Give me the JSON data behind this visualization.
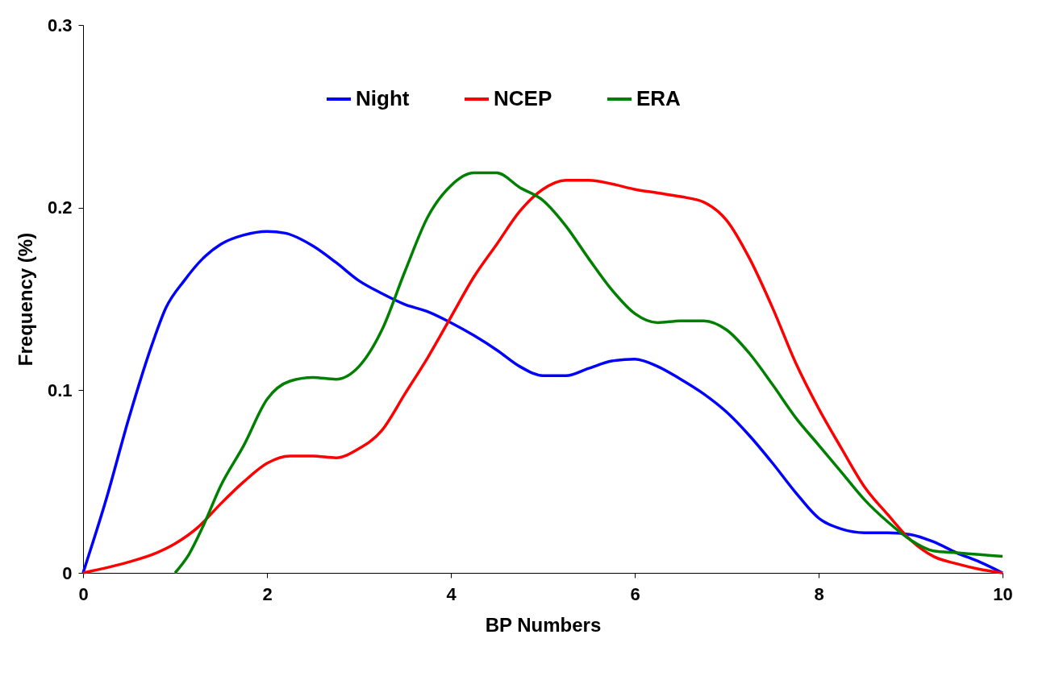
{
  "chart_data": {
    "type": "line",
    "xlabel": "BP Numbers",
    "ylabel": "Frequency (%)",
    "xlim": [
      0,
      10
    ],
    "xticks": [
      0,
      2,
      4,
      6,
      8,
      10
    ],
    "ylim": [
      0,
      0.3
    ],
    "yticks": [
      0,
      0.1,
      0.2,
      0.3
    ],
    "grid": false,
    "legend": "top",
    "marker": "none",
    "line_style": "solid",
    "series": [
      {
        "name": "Night",
        "color": "#0000ff",
        "x": [
          0,
          0.25,
          0.5,
          0.75,
          0.9,
          1.1,
          1.3,
          1.5,
          1.75,
          2,
          2.2,
          2.5,
          2.75,
          3,
          3.25,
          3.5,
          3.75,
          4,
          4.25,
          4.5,
          4.75,
          5,
          5.25,
          5.5,
          5.75,
          6,
          6.25,
          6.5,
          6.75,
          7,
          7.25,
          7.5,
          7.75,
          8,
          8.25,
          8.5,
          8.75,
          9,
          9.25,
          9.5,
          9.75,
          10
        ],
        "values": [
          0,
          0.04,
          0.085,
          0.125,
          0.145,
          0.16,
          0.172,
          0.18,
          0.185,
          0.187,
          0.186,
          0.179,
          0.17,
          0.16,
          0.153,
          0.147,
          0.143,
          0.137,
          0.13,
          0.122,
          0.113,
          0.108,
          0.108,
          0.112,
          0.116,
          0.117,
          0.113,
          0.106,
          0.098,
          0.088,
          0.075,
          0.06,
          0.044,
          0.03,
          0.024,
          0.022,
          0.022,
          0.021,
          0.017,
          0.011,
          0.006,
          0
        ]
      },
      {
        "name": "NCEP",
        "color": "#ff0000",
        "x": [
          0,
          0.5,
          0.8,
          1,
          1.25,
          1.5,
          1.75,
          2,
          2.25,
          2.5,
          2.75,
          3,
          3.25,
          3.5,
          3.75,
          4,
          4.25,
          4.5,
          4.75,
          5,
          5.25,
          5.5,
          5.75,
          6,
          6.25,
          6.5,
          6.75,
          7,
          7.25,
          7.5,
          7.75,
          8,
          8.25,
          8.5,
          8.75,
          9,
          9.25,
          9.5,
          9.75,
          10
        ],
        "values": [
          0,
          0.006,
          0.011,
          0.016,
          0.025,
          0.038,
          0.05,
          0.06,
          0.064,
          0.064,
          0.063,
          0.068,
          0.078,
          0.098,
          0.118,
          0.14,
          0.162,
          0.18,
          0.198,
          0.21,
          0.215,
          0.215,
          0.213,
          0.21,
          0.208,
          0.206,
          0.203,
          0.193,
          0.172,
          0.145,
          0.115,
          0.09,
          0.068,
          0.047,
          0.032,
          0.018,
          0.009,
          0.005,
          0.002,
          0
        ]
      },
      {
        "name": "ERA",
        "color": "#008000",
        "x": [
          1,
          1.15,
          1.3,
          1.5,
          1.75,
          2,
          2.25,
          2.5,
          2.75,
          3,
          3.25,
          3.5,
          3.75,
          4,
          4.25,
          4.5,
          4.75,
          5,
          5.25,
          5.5,
          5.75,
          6,
          6.25,
          6.5,
          6.75,
          7,
          7.25,
          7.5,
          7.75,
          8,
          8.25,
          8.5,
          8.75,
          9,
          9.25,
          9.5,
          9.75,
          10
        ],
        "values": [
          0,
          0.01,
          0.025,
          0.048,
          0.07,
          0.095,
          0.105,
          0.107,
          0.106,
          0.113,
          0.133,
          0.165,
          0.195,
          0.212,
          0.219,
          0.219,
          0.211,
          0.204,
          0.19,
          0.172,
          0.155,
          0.142,
          0.137,
          0.138,
          0.138,
          0.133,
          0.12,
          0.103,
          0.085,
          0.07,
          0.055,
          0.04,
          0.028,
          0.018,
          0.012,
          0.011,
          0.01,
          0.009
        ]
      }
    ]
  }
}
